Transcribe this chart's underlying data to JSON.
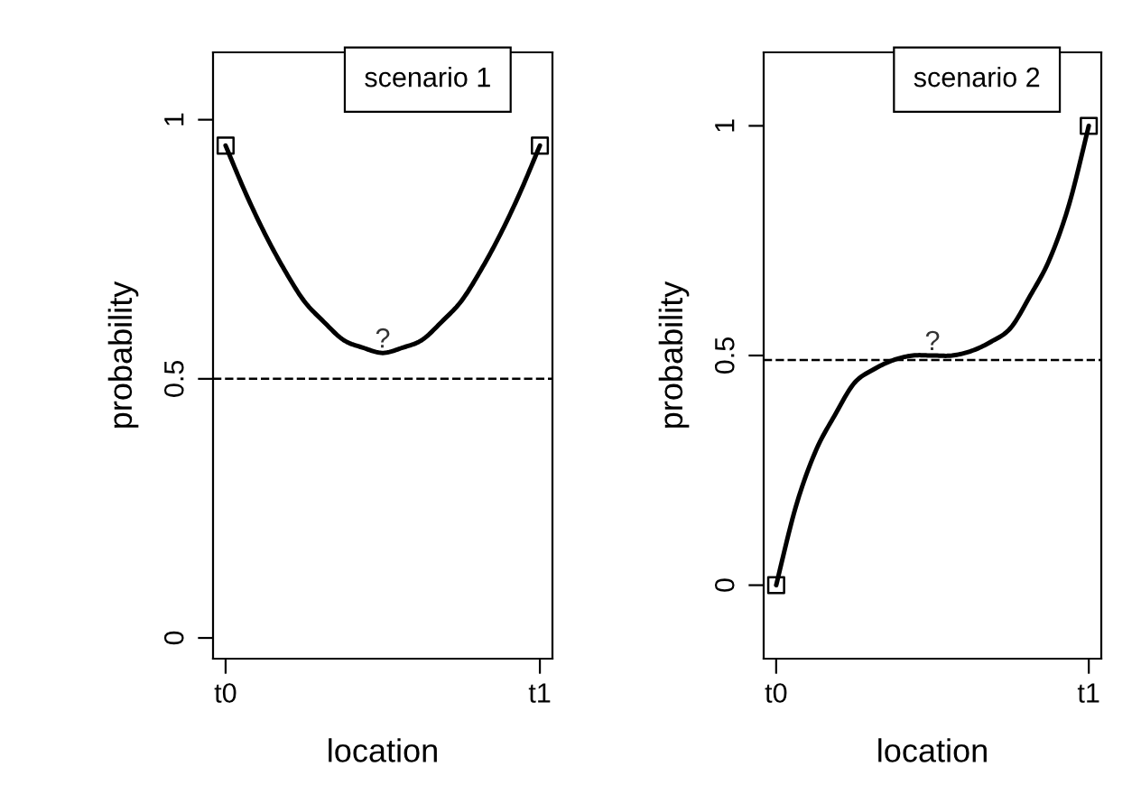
{
  "chart_data": [
    {
      "type": "line",
      "title": "scenario 1",
      "xlabel": "location",
      "ylabel": "probability",
      "ylim": [
        -0.04,
        1.13
      ],
      "yticks": [
        0,
        0.5,
        1
      ],
      "categories": [
        "t0",
        null,
        null,
        null,
        null,
        null,
        null,
        null,
        null,
        null,
        null,
        null,
        null,
        null,
        null,
        null,
        "t1"
      ],
      "series": [
        {
          "color": "#000000",
          "values": [
            0.95,
            0.86,
            0.78,
            0.71,
            0.65,
            0.61,
            0.575,
            0.56,
            0.55,
            0.56,
            0.575,
            0.61,
            0.65,
            0.71,
            0.78,
            0.86,
            0.95
          ]
        },
        {
          "type": "scatter",
          "color": "#000000",
          "marker": "square",
          "values": [
            0.95,
            null,
            null,
            null,
            null,
            null,
            null,
            null,
            null,
            null,
            null,
            null,
            null,
            null,
            null,
            null,
            0.95
          ]
        }
      ],
      "ref_lines": [
        {
          "axis": "y",
          "value": 0.5,
          "line_style": "dashed",
          "color": "#000000"
        }
      ],
      "annotations": [
        {
          "text": "?",
          "y": 0.55
        }
      ]
    },
    {
      "type": "line",
      "title": "scenario 2",
      "xlabel": "location",
      "ylabel": "probability",
      "ylim": [
        -0.16,
        1.16
      ],
      "yticks": [
        0,
        0.5,
        1
      ],
      "categories": [
        "t0",
        null,
        null,
        null,
        null,
        null,
        null,
        null,
        null,
        null,
        null,
        null,
        null,
        null,
        null,
        null,
        "t1"
      ],
      "series": [
        {
          "color": "#000000",
          "values": [
            0,
            0.17,
            0.29,
            0.37,
            0.44,
            0.47,
            0.49,
            0.5,
            0.5,
            0.5,
            0.51,
            0.53,
            0.56,
            0.63,
            0.71,
            0.83,
            1
          ]
        },
        {
          "type": "scatter",
          "color": "#000000",
          "marker": "square",
          "values": [
            0,
            null,
            null,
            null,
            null,
            null,
            null,
            null,
            null,
            null,
            null,
            null,
            null,
            null,
            null,
            null,
            1
          ]
        }
      ],
      "ref_lines": [
        {
          "axis": "y",
          "value": 0.49,
          "line_style": "dashed",
          "color": "#000000"
        }
      ],
      "annotations": [
        {
          "text": "?",
          "y": 0.5
        }
      ]
    }
  ]
}
